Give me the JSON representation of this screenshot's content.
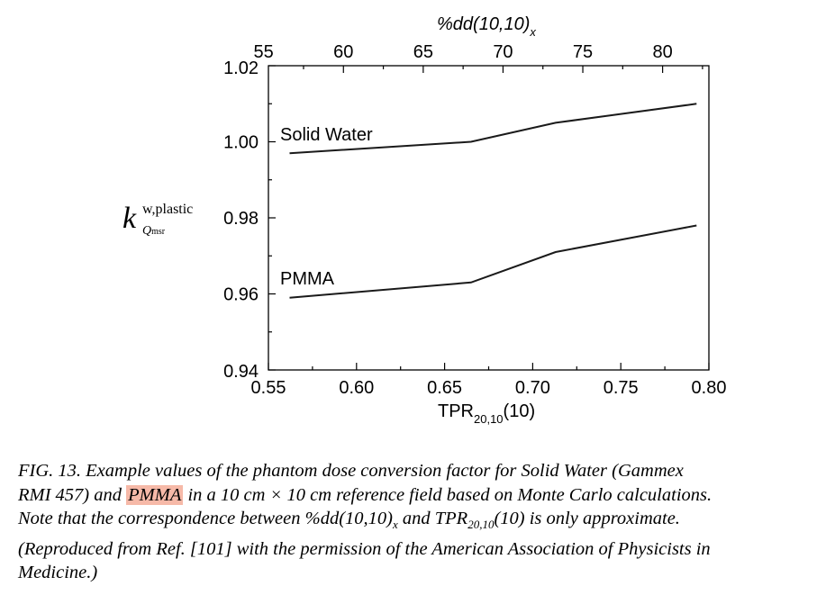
{
  "chart_data": {
    "type": "line",
    "xlabel_main": "TPR",
    "xlabel_sub": "20,10",
    "xlabel_tail": "(10)",
    "x2label_main": "%dd(10,10)",
    "x2label_sub": "x",
    "ylabel": {
      "symbol": "k",
      "superscript": "w,plastic",
      "subscript": "Q",
      "subscript_sub": "msr"
    },
    "xlim": [
      0.55,
      0.8
    ],
    "ylim": [
      0.94,
      1.02
    ],
    "x2lim": [
      55.3,
      82.9
    ],
    "xticks": [
      "0.55",
      "0.60",
      "0.65",
      "0.70",
      "0.75",
      "0.80"
    ],
    "yticks": [
      "0.94",
      "0.96",
      "0.98",
      "1.00",
      "1.02"
    ],
    "x2ticks": [
      "55",
      "60",
      "65",
      "70",
      "75",
      "80"
    ],
    "series": [
      {
        "name": "Solid Water",
        "x": [
          0.562,
          0.665,
          0.713,
          0.793
        ],
        "y": [
          0.997,
          1.0,
          1.005,
          1.01
        ]
      },
      {
        "name": "PMMA",
        "x": [
          0.562,
          0.665,
          0.713,
          0.793
        ],
        "y": [
          0.959,
          0.963,
          0.971,
          0.978
        ]
      }
    ],
    "grid": false
  },
  "caption": {
    "p1": "FIG. 13.  Example values of the phantom dose conversion factor for Solid Water (Gammex",
    "p2a": "RMI 457) and ",
    "highlight": "PMMA",
    "p2b": " in a 10 cm × 10 cm reference field based on Monte Carlo calculations.",
    "p3a": "Note that the correspondence between %dd(10,10)",
    "p3sub1": "x",
    "p3b": " and TPR",
    "p3sub2": "20,10",
    "p3c": "(10) is only approximate.",
    "p4": "(Reproduced from Ref. [101] with the permission of the American Association of Physicists in",
    "p5": "Medicine.)"
  }
}
